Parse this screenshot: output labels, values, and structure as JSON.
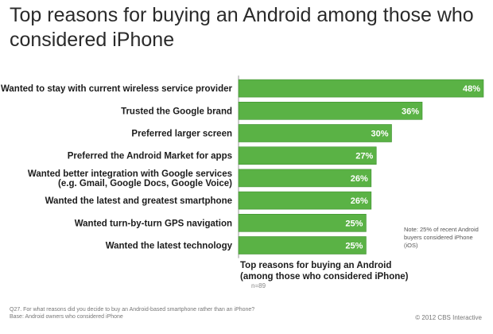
{
  "title": "Top reasons for buying an Android among those who considered iPhone",
  "note": "Note: 25% of recent Android buyers considered iPhone (iOS)",
  "chart_label_line1": "Top reasons for buying an Android",
  "chart_label_line2": "(among those who considered iPhone)",
  "chart_base": "n=89",
  "footnote_q": "Q27. For what reasons did you decide to buy an Android-based smartphone rather than an iPhone?",
  "footnote_base": "Base: Android owners who considered iPhone",
  "copyright": "© 2012 CBS Interactive",
  "colors": {
    "bar": "#5ab245",
    "bar_dark": "#3d8f2e",
    "value_text": "#ffffff"
  },
  "chart_data": {
    "type": "bar",
    "orientation": "horizontal",
    "title": "Top reasons for buying an Android among those who considered iPhone",
    "categories": [
      [
        "Wanted to stay with current wireless service provider"
      ],
      [
        "Trusted the Google brand"
      ],
      [
        "Preferred larger screen"
      ],
      [
        "Preferred the Android Market for apps"
      ],
      [
        "Wanted better integration with Google services",
        "(e.g. Gmail, Google Docs, Google Voice)"
      ],
      [
        "Wanted the latest and greatest smartphone"
      ],
      [
        "Wanted turn-by-turn GPS navigation"
      ],
      [
        "Wanted the latest technology"
      ]
    ],
    "values": [
      48,
      36,
      30,
      27,
      26,
      26,
      25,
      25
    ],
    "value_labels": [
      "48%",
      "36%",
      "30%",
      "27%",
      "26%",
      "26%",
      "25%",
      "25%"
    ],
    "xlim": [
      0,
      48
    ],
    "grid": false,
    "unit": "%"
  }
}
